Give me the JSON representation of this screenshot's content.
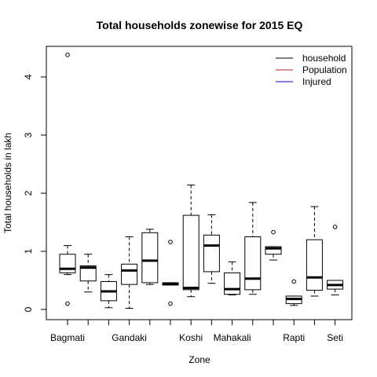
{
  "chart_data": {
    "type": "boxplot",
    "title": "Total households zonewise for 2015 EQ",
    "xlabel": "Zone",
    "ylabel": "Total households in lakh",
    "ylim": [
      -0.1,
      4.5
    ],
    "yticks": [
      0,
      1,
      2,
      3,
      4
    ],
    "xtick_labels": [
      "Bagmati",
      "",
      "",
      "Gandaki",
      "",
      "",
      "Koshi",
      "",
      "Mahakali",
      "",
      "",
      "Rapti",
      "",
      "Seti"
    ],
    "legend": {
      "position": "top-right",
      "items": [
        {
          "label": "household",
          "color": "#000000"
        },
        {
          "label": "Population",
          "color": "#b22222"
        },
        {
          "label": "Injured",
          "color": "#0000cd"
        }
      ]
    },
    "boxes": [
      {
        "min": 0.6,
        "q1": 0.63,
        "median": 0.7,
        "q3": 0.95,
        "max": 1.1,
        "outliers": [
          4.38,
          0.1
        ]
      },
      {
        "min": 0.3,
        "q1": 0.49,
        "median": 0.72,
        "q3": 0.75,
        "max": 0.95,
        "outliers": []
      },
      {
        "min": 0.03,
        "q1": 0.15,
        "median": 0.31,
        "q3": 0.48,
        "max": 0.6,
        "outliers": []
      },
      {
        "min": 0.02,
        "q1": 0.43,
        "median": 0.67,
        "q3": 0.78,
        "max": 1.25,
        "outliers": []
      },
      {
        "min": 0.43,
        "q1": 0.46,
        "median": 0.84,
        "q3": 1.32,
        "max": 1.38,
        "outliers": []
      },
      {
        "min": 0.42,
        "q1": 0.42,
        "median": 0.44,
        "q3": 0.46,
        "max": 0.46,
        "outliers": [
          1.16,
          0.1
        ]
      },
      {
        "min": 0.22,
        "q1": 0.34,
        "median": 0.37,
        "q3": 1.62,
        "max": 2.14,
        "outliers": []
      },
      {
        "min": 0.45,
        "q1": 0.65,
        "median": 1.1,
        "q3": 1.28,
        "max": 1.63,
        "outliers": []
      },
      {
        "min": 0.25,
        "q1": 0.26,
        "median": 0.35,
        "q3": 0.63,
        "max": 0.82,
        "outliers": []
      },
      {
        "min": 0.26,
        "q1": 0.34,
        "median": 0.53,
        "q3": 1.25,
        "max": 1.84,
        "outliers": []
      },
      {
        "min": 0.85,
        "q1": 0.95,
        "median": 1.05,
        "q3": 1.08,
        "max": 1.08,
        "outliers": [
          1.33
        ]
      },
      {
        "min": 0.07,
        "q1": 0.1,
        "median": 0.18,
        "q3": 0.23,
        "max": 0.23,
        "outliers": [
          0.48
        ]
      },
      {
        "min": 0.23,
        "q1": 0.33,
        "median": 0.55,
        "q3": 1.2,
        "max": 1.77,
        "outliers": []
      },
      {
        "min": 0.25,
        "q1": 0.35,
        "median": 0.42,
        "q3": 0.5,
        "max": 0.5,
        "outliers": [
          1.42
        ]
      }
    ]
  }
}
